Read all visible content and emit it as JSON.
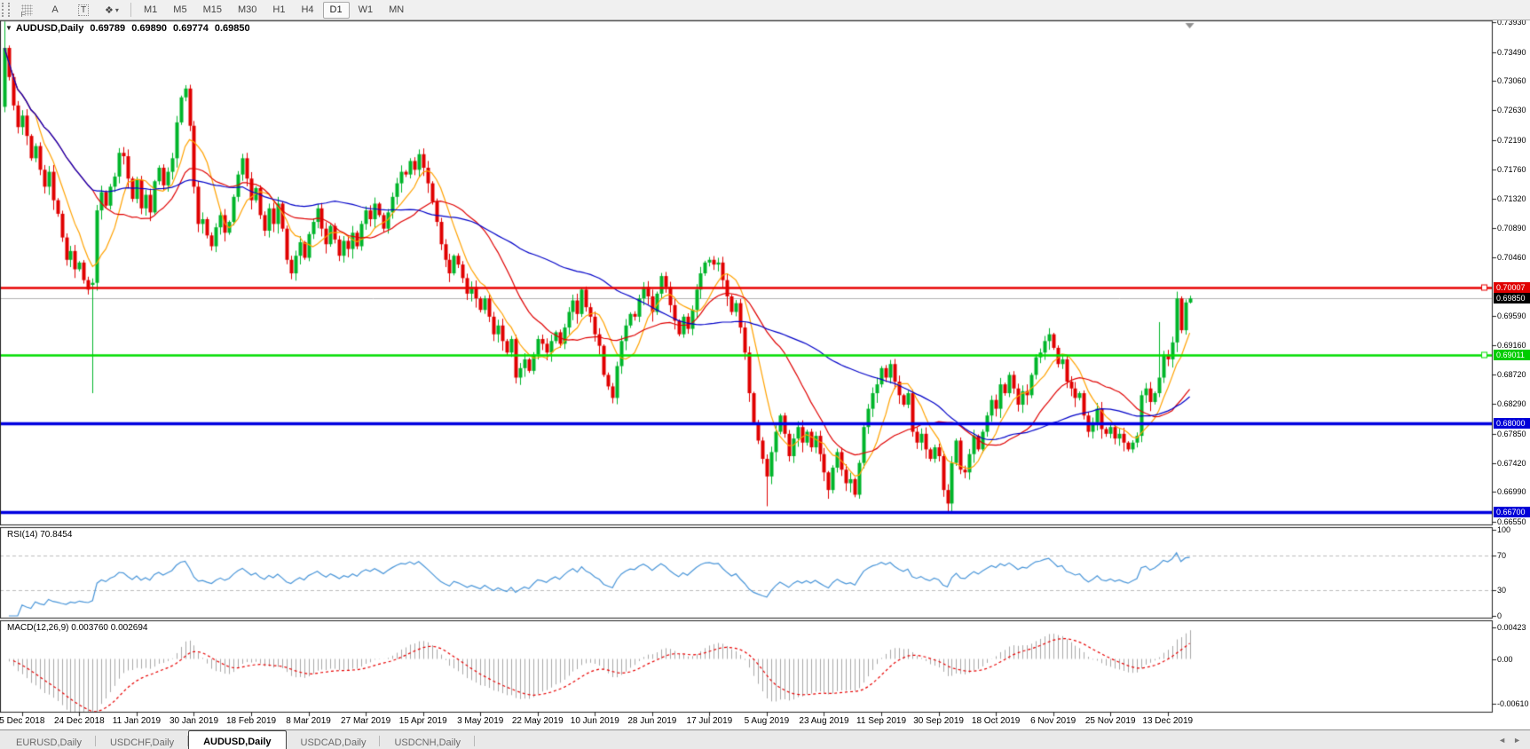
{
  "toolbar": {
    "tools": [
      {
        "name": "grid-pattern-icon",
        "glyph": "",
        "caption": "F"
      },
      {
        "name": "text-label-tool-icon",
        "glyph": "A"
      },
      {
        "name": "text-box-tool-icon",
        "glyph": "T"
      },
      {
        "name": "shapes-tool-icon",
        "glyph": "❖"
      }
    ],
    "dropdown_caret": "▾",
    "timeframes": [
      "M1",
      "M5",
      "M15",
      "M30",
      "H1",
      "H4",
      "D1",
      "W1",
      "MN"
    ],
    "active_timeframe": "D1"
  },
  "chart_header": {
    "marker": "▼",
    "symbol": "AUDUSD,Daily",
    "open": "0.69789",
    "high": "0.69890",
    "low": "0.69774",
    "close": "0.69850"
  },
  "price_axis": {
    "labels": [
      "0.73930",
      "0.73490",
      "0.73060",
      "0.72630",
      "0.72190",
      "0.71760",
      "0.71320",
      "0.70890",
      "0.70460",
      "0.69590",
      "0.69160",
      "0.68720",
      "0.68290",
      "0.67850",
      "0.67420",
      "0.66990",
      "0.66550"
    ]
  },
  "level_badges": [
    {
      "text": "0.70007",
      "price": 0.70007,
      "color": "#e00000"
    },
    {
      "text": "0.69850",
      "price": 0.6985,
      "color": "#000000"
    },
    {
      "text": "0.69011",
      "price": 0.69011,
      "color": "#00cc00"
    },
    {
      "text": "0.68000",
      "price": 0.68,
      "color": "#0000d8"
    },
    {
      "text": "0.66700",
      "price": 0.667,
      "color": "#0000d8"
    }
  ],
  "chart_data": {
    "type": "candlestick",
    "symbol": "AUDUSD",
    "timeframe": "Daily",
    "last_bar_ohlc": {
      "open": 0.69789,
      "high": 0.6989,
      "low": 0.69774,
      "close": 0.6985
    },
    "colors": {
      "bull": "#00b52a",
      "bear": "#e00000",
      "ma_fast": "#ffa200",
      "ma_mid": "#e00000",
      "ma_slow": "#0000c8",
      "hline_red": "#e80000",
      "hline_green": "#00dd00",
      "hline_blue": "#0000e0",
      "current_price_line": "#b4b4b4",
      "rsi_line": "#4a96d9",
      "macd_hist": "#a8a8a8",
      "macd_signal": "#e80000"
    },
    "hlines": [
      {
        "price": 0.70007,
        "color": "#e80000",
        "width": 2.5,
        "marker": true
      },
      {
        "price": 0.69011,
        "color": "#00dd00",
        "width": 2.5,
        "marker": true
      },
      {
        "price": 0.68,
        "color": "#0000e0",
        "width": 3.5,
        "marker": false
      },
      {
        "price": 0.667,
        "color": "#0000e0",
        "width": 3.5,
        "marker": false
      }
    ],
    "current_price": 0.6985,
    "moving_averages": [
      {
        "period": 8,
        "color": "#ffa200"
      },
      {
        "period": 21,
        "color": "#e00000"
      },
      {
        "period": 55,
        "color": "#0000c8"
      }
    ],
    "closes": [
      0.7355,
      0.7312,
      0.727,
      0.7238,
      0.7255,
      0.7225,
      0.7192,
      0.721,
      0.7175,
      0.715,
      0.7172,
      0.713,
      0.711,
      0.7075,
      0.7042,
      0.7055,
      0.7028,
      0.7038,
      0.7012,
      0.6998,
      0.7008,
      0.7115,
      0.7142,
      0.7122,
      0.715,
      0.7165,
      0.72,
      0.7195,
      0.7162,
      0.7132,
      0.716,
      0.7118,
      0.7138,
      0.7112,
      0.7158,
      0.7178,
      0.7152,
      0.7172,
      0.7192,
      0.7245,
      0.7282,
      0.7295,
      0.724,
      0.715,
      0.7095,
      0.7102,
      0.7078,
      0.7062,
      0.709,
      0.7108,
      0.7082,
      0.7098,
      0.7135,
      0.7168,
      0.7192,
      0.7162,
      0.713,
      0.7148,
      0.7108,
      0.7085,
      0.7118,
      0.7095,
      0.7125,
      0.7088,
      0.7042,
      0.7022,
      0.7048,
      0.7068,
      0.7045,
      0.708,
      0.7098,
      0.7118,
      0.7088,
      0.7065,
      0.7092,
      0.7072,
      0.7048,
      0.707,
      0.7058,
      0.7082,
      0.7062,
      0.7095,
      0.7115,
      0.7102,
      0.7125,
      0.7108,
      0.7088,
      0.7112,
      0.7135,
      0.7155,
      0.7172,
      0.7168,
      0.7188,
      0.7175,
      0.7198,
      0.7178,
      0.7155,
      0.7128,
      0.7098,
      0.7065,
      0.7042,
      0.7022,
      0.7048,
      0.7035,
      0.7015,
      0.6992,
      0.7002,
      0.6985,
      0.6968,
      0.6985,
      0.6958,
      0.6932,
      0.6945,
      0.6922,
      0.6905,
      0.6925,
      0.6868,
      0.6882,
      0.6895,
      0.6878,
      0.6902,
      0.6925,
      0.6918,
      0.6905,
      0.6922,
      0.6935,
      0.6918,
      0.6942,
      0.6965,
      0.6982,
      0.6962,
      0.6998,
      0.6972,
      0.6958,
      0.6932,
      0.6915,
      0.6872,
      0.6855,
      0.6838,
      0.6885,
      0.6922,
      0.6945,
      0.6962,
      0.6958,
      0.6985,
      0.7002,
      0.6988,
      0.6965,
      0.6992,
      0.7018,
      0.7002,
      0.6975,
      0.6952,
      0.6932,
      0.6958,
      0.694,
      0.6968,
      0.6998,
      0.7022,
      0.7038,
      0.7042,
      0.7035,
      0.7038,
      0.7012,
      0.6988,
      0.6965,
      0.6978,
      0.6942,
      0.6905,
      0.6845,
      0.6802,
      0.6775,
      0.6748,
      0.6722,
      0.6758,
      0.6788,
      0.6812,
      0.6785,
      0.6752,
      0.6778,
      0.6795,
      0.6772,
      0.6788,
      0.6765,
      0.6782,
      0.6755,
      0.6728,
      0.6702,
      0.6735,
      0.6758,
      0.6732,
      0.6712,
      0.6718,
      0.6695,
      0.6742,
      0.6795,
      0.6822,
      0.6845,
      0.6858,
      0.6882,
      0.6868,
      0.6888,
      0.6862,
      0.6842,
      0.6828,
      0.6845,
      0.6788,
      0.6772,
      0.6785,
      0.6762,
      0.6748,
      0.6765,
      0.6752,
      0.6702,
      0.6682,
      0.6742,
      0.6775,
      0.6732,
      0.6728,
      0.6755,
      0.6782,
      0.6762,
      0.6788,
      0.6812,
      0.6835,
      0.6822,
      0.6858,
      0.6845,
      0.6872,
      0.6852,
      0.6828,
      0.6848,
      0.6842,
      0.6872,
      0.6898,
      0.6905,
      0.6922,
      0.6932,
      0.6912,
      0.6888,
      0.6895,
      0.6862,
      0.6852,
      0.6838,
      0.6845,
      0.6812,
      0.6788,
      0.6802,
      0.6822,
      0.6792,
      0.6785,
      0.6795,
      0.6778,
      0.6785,
      0.6772,
      0.6762,
      0.6772,
      0.6782,
      0.6842,
      0.6852,
      0.6832,
      0.6845,
      0.6868,
      0.6902,
      0.6895,
      0.692,
      0.6985,
      0.6938,
      0.6979,
      0.6985
    ],
    "candle_overrides": {
      "0": {
        "o": 0.7268,
        "h": 0.7394,
        "l": 0.726
      },
      "20": {
        "o": 0.7005,
        "l": 0.6845
      },
      "41": {
        "h": 0.73
      },
      "94": {
        "h": 0.7205
      },
      "138": {
        "l": 0.683
      },
      "173": {
        "l": 0.6678
      },
      "187": {
        "l": 0.6689
      },
      "214": {
        "l": 0.667
      },
      "262": {
        "h": 0.695
      },
      "269": {
        "o": 0.69789,
        "h": 0.6989,
        "l": 0.69774,
        "c": 0.6985
      }
    },
    "date_axis": {
      "labels": [
        "5 Dec 2018",
        "24 Dec 2018",
        "11 Jan 2019",
        "30 Jan 2019",
        "18 Feb 2019",
        "8 Mar 2019",
        "27 Mar 2019",
        "15 Apr 2019",
        "3 May 2019",
        "22 May 2019",
        "10 Jun 2019",
        "28 Jun 2019",
        "17 Jul 2019",
        "5 Aug 2019",
        "23 Aug 2019",
        "11 Sep 2019",
        "30 Sep 2019",
        "18 Oct 2019",
        "6 Nov 2019",
        "25 Nov 2019",
        "13 Dec 2019"
      ],
      "first_tick_bar": 4,
      "bars_per_tick": 13
    },
    "rsi": {
      "label": "RSI(14) 70.8454",
      "period": 14,
      "current": 70.8454,
      "levels": [
        70,
        30
      ],
      "axis_values": [
        100,
        70,
        30,
        0
      ],
      "axis_labels": [
        "100",
        "70",
        "30",
        "0"
      ]
    },
    "macd": {
      "label": "MACD(12,26,9) 0.003760 0.002694",
      "fast": 12,
      "slow": 26,
      "signal": 9,
      "current_macd": 0.00376,
      "current_signal": 0.002694,
      "axis_values": [
        0.00423,
        0.0,
        -0.0061
      ],
      "axis_labels": [
        "0.00423",
        "0.00",
        "-0.00610"
      ]
    }
  },
  "tabs": {
    "items": [
      "EURUSD,Daily",
      "USDCHF,Daily",
      "AUDUSD,Daily",
      "USDCAD,Daily",
      "USDCNH,Daily"
    ],
    "active": "AUDUSD,Daily",
    "arrow_left": "◄",
    "arrow_right": "►"
  }
}
